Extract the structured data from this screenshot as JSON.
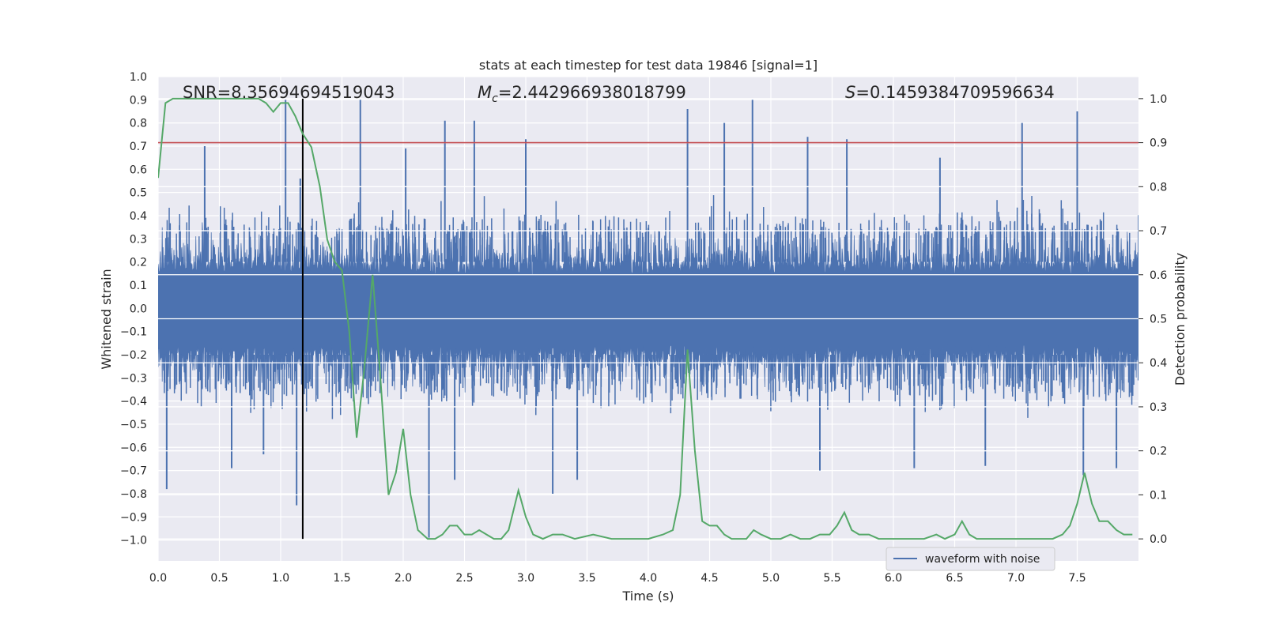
{
  "chart_data": {
    "type": "line",
    "title": "stats at each timestep for test data 19846 [signal=1]",
    "xlabel": "Time (s)",
    "ylabel_left": "Whitened strain",
    "ylabel_right": "Detection probability",
    "xlim": [
      0.0,
      8.0
    ],
    "ylim_left": [
      -1.09,
      1.0
    ],
    "ylim_right": [
      -0.05,
      1.05
    ],
    "xticks": [
      0.0,
      0.5,
      1.0,
      1.5,
      2.0,
      2.5,
      3.0,
      3.5,
      4.0,
      4.5,
      5.0,
      5.5,
      6.0,
      6.5,
      7.0,
      7.5
    ],
    "xtick_labels": [
      "0.0",
      "0.5",
      "1.0",
      "1.5",
      "2.0",
      "2.5",
      "3.0",
      "3.5",
      "4.0",
      "4.5",
      "5.0",
      "5.5",
      "6.0",
      "6.5",
      "7.0",
      "7.5"
    ],
    "yticks_left": [
      1.0,
      0.9,
      0.8,
      0.7,
      0.6,
      0.5,
      0.4,
      0.3,
      0.2,
      0.1,
      0.0,
      -0.1,
      -0.2,
      -0.3,
      -0.4,
      -0.5,
      -0.6,
      -0.7,
      -0.8,
      -0.9,
      -1.0
    ],
    "ytick_labels_left": [
      "1.0",
      "0.9",
      "0.8",
      "0.7",
      "0.6",
      "0.5",
      "0.4",
      "0.3",
      "0.2",
      "0.1",
      "0.0",
      "−0.1",
      "−0.2",
      "−0.3",
      "−0.4",
      "−0.5",
      "−0.6",
      "−0.7",
      "−0.8",
      "−0.9",
      "−1.0"
    ],
    "yticks_right": [
      1.0,
      0.9,
      0.8,
      0.7,
      0.6,
      0.5,
      0.4,
      0.3,
      0.2,
      0.1,
      0.0
    ],
    "ytick_labels_right": [
      "1.0",
      "0.9",
      "0.8",
      "0.7",
      "0.6",
      "0.5",
      "0.4",
      "0.3",
      "0.2",
      "0.1",
      "0.0"
    ],
    "annotations": {
      "snr": "SNR=8.35694694519043",
      "mc_symbol": "M",
      "mc_subscript": "c",
      "mc_value": "=2.442966938018799",
      "s_symbol": "S",
      "s_value": "=0.1459384709596634"
    },
    "threshold": {
      "value": 0.9,
      "axis": "right",
      "color": "#c44e52"
    },
    "marker_time": {
      "value": 1.18,
      "color": "#000000"
    },
    "grid": true,
    "legend": {
      "position": "lower-right",
      "entries": [
        {
          "label": "waveform with noise",
          "color": "#4c72b0"
        }
      ]
    },
    "series": [
      {
        "name": "waveform with noise",
        "axis": "left",
        "color": "#4c72b0",
        "style": "dense-noise",
        "amplitude": 0.26,
        "spikes": [
          {
            "x": 0.07,
            "y": -0.78
          },
          {
            "x": 0.38,
            "y": 0.7
          },
          {
            "x": 0.6,
            "y": -0.69
          },
          {
            "x": 0.86,
            "y": -0.63
          },
          {
            "x": 1.04,
            "y": 0.9
          },
          {
            "x": 1.13,
            "y": -0.85
          },
          {
            "x": 1.16,
            "y": 0.56
          },
          {
            "x": 1.65,
            "y": 0.9
          },
          {
            "x": 2.02,
            "y": 0.69
          },
          {
            "x": 2.21,
            "y": -0.99
          },
          {
            "x": 2.34,
            "y": 0.81
          },
          {
            "x": 2.42,
            "y": -0.74
          },
          {
            "x": 2.58,
            "y": 0.81
          },
          {
            "x": 3.0,
            "y": 0.73
          },
          {
            "x": 3.22,
            "y": -0.8
          },
          {
            "x": 3.42,
            "y": -0.74
          },
          {
            "x": 4.32,
            "y": 0.86
          },
          {
            "x": 4.62,
            "y": 0.8
          },
          {
            "x": 4.85,
            "y": 0.9
          },
          {
            "x": 5.3,
            "y": 0.74
          },
          {
            "x": 5.4,
            "y": -0.7
          },
          {
            "x": 5.62,
            "y": 0.73
          },
          {
            "x": 6.17,
            "y": -0.69
          },
          {
            "x": 6.38,
            "y": 0.65
          },
          {
            "x": 6.75,
            "y": -0.68
          },
          {
            "x": 7.05,
            "y": 0.8
          },
          {
            "x": 7.5,
            "y": 0.85
          },
          {
            "x": 7.55,
            "y": -0.72
          },
          {
            "x": 7.82,
            "y": -0.69
          }
        ]
      },
      {
        "name": "",
        "axis": "right",
        "color": "#55a868",
        "x": [
          0.0,
          0.06,
          0.12,
          0.2,
          0.3,
          0.5,
          0.7,
          0.82,
          0.88,
          0.94,
          1.0,
          1.06,
          1.12,
          1.18,
          1.25,
          1.32,
          1.38,
          1.44,
          1.5,
          1.56,
          1.62,
          1.68,
          1.75,
          1.81,
          1.88,
          1.94,
          2.0,
          2.06,
          2.12,
          2.2,
          2.26,
          2.32,
          2.38,
          2.44,
          2.5,
          2.56,
          2.62,
          2.68,
          2.74,
          2.8,
          2.86,
          2.94,
          3.0,
          3.06,
          3.14,
          3.22,
          3.3,
          3.4,
          3.55,
          3.7,
          3.85,
          4.0,
          4.12,
          4.2,
          4.26,
          4.32,
          4.38,
          4.44,
          4.5,
          4.56,
          4.62,
          4.68,
          4.74,
          4.8,
          4.86,
          4.92,
          5.0,
          5.08,
          5.16,
          5.24,
          5.32,
          5.4,
          5.48,
          5.54,
          5.6,
          5.66,
          5.72,
          5.8,
          5.88,
          5.96,
          6.05,
          6.15,
          6.25,
          6.35,
          6.42,
          6.5,
          6.56,
          6.62,
          6.68,
          6.74,
          6.82,
          6.92,
          7.0,
          7.1,
          7.2,
          7.3,
          7.38,
          7.44,
          7.5,
          7.56,
          7.62,
          7.68,
          7.75,
          7.82,
          7.88,
          7.95
        ],
        "y": [
          0.82,
          0.99,
          1.0,
          1.0,
          1.0,
          1.0,
          1.0,
          1.0,
          0.99,
          0.97,
          0.99,
          0.99,
          0.96,
          0.92,
          0.89,
          0.8,
          0.68,
          0.63,
          0.61,
          0.47,
          0.23,
          0.38,
          0.6,
          0.38,
          0.1,
          0.15,
          0.25,
          0.1,
          0.02,
          0.0,
          0.0,
          0.01,
          0.03,
          0.03,
          0.01,
          0.01,
          0.02,
          0.01,
          0.0,
          0.0,
          0.02,
          0.11,
          0.05,
          0.01,
          0.0,
          0.01,
          0.01,
          0.0,
          0.01,
          0.0,
          0.0,
          0.0,
          0.01,
          0.02,
          0.1,
          0.43,
          0.2,
          0.04,
          0.03,
          0.03,
          0.01,
          0.0,
          0.0,
          0.0,
          0.02,
          0.01,
          0.0,
          0.0,
          0.01,
          0.0,
          0.0,
          0.01,
          0.01,
          0.03,
          0.06,
          0.02,
          0.01,
          0.01,
          0.0,
          0.0,
          0.0,
          0.0,
          0.0,
          0.01,
          0.0,
          0.01,
          0.04,
          0.01,
          0.0,
          0.0,
          0.0,
          0.0,
          0.0,
          0.0,
          0.0,
          0.0,
          0.01,
          0.03,
          0.08,
          0.15,
          0.08,
          0.04,
          0.04,
          0.02,
          0.01,
          0.01
        ]
      }
    ]
  }
}
